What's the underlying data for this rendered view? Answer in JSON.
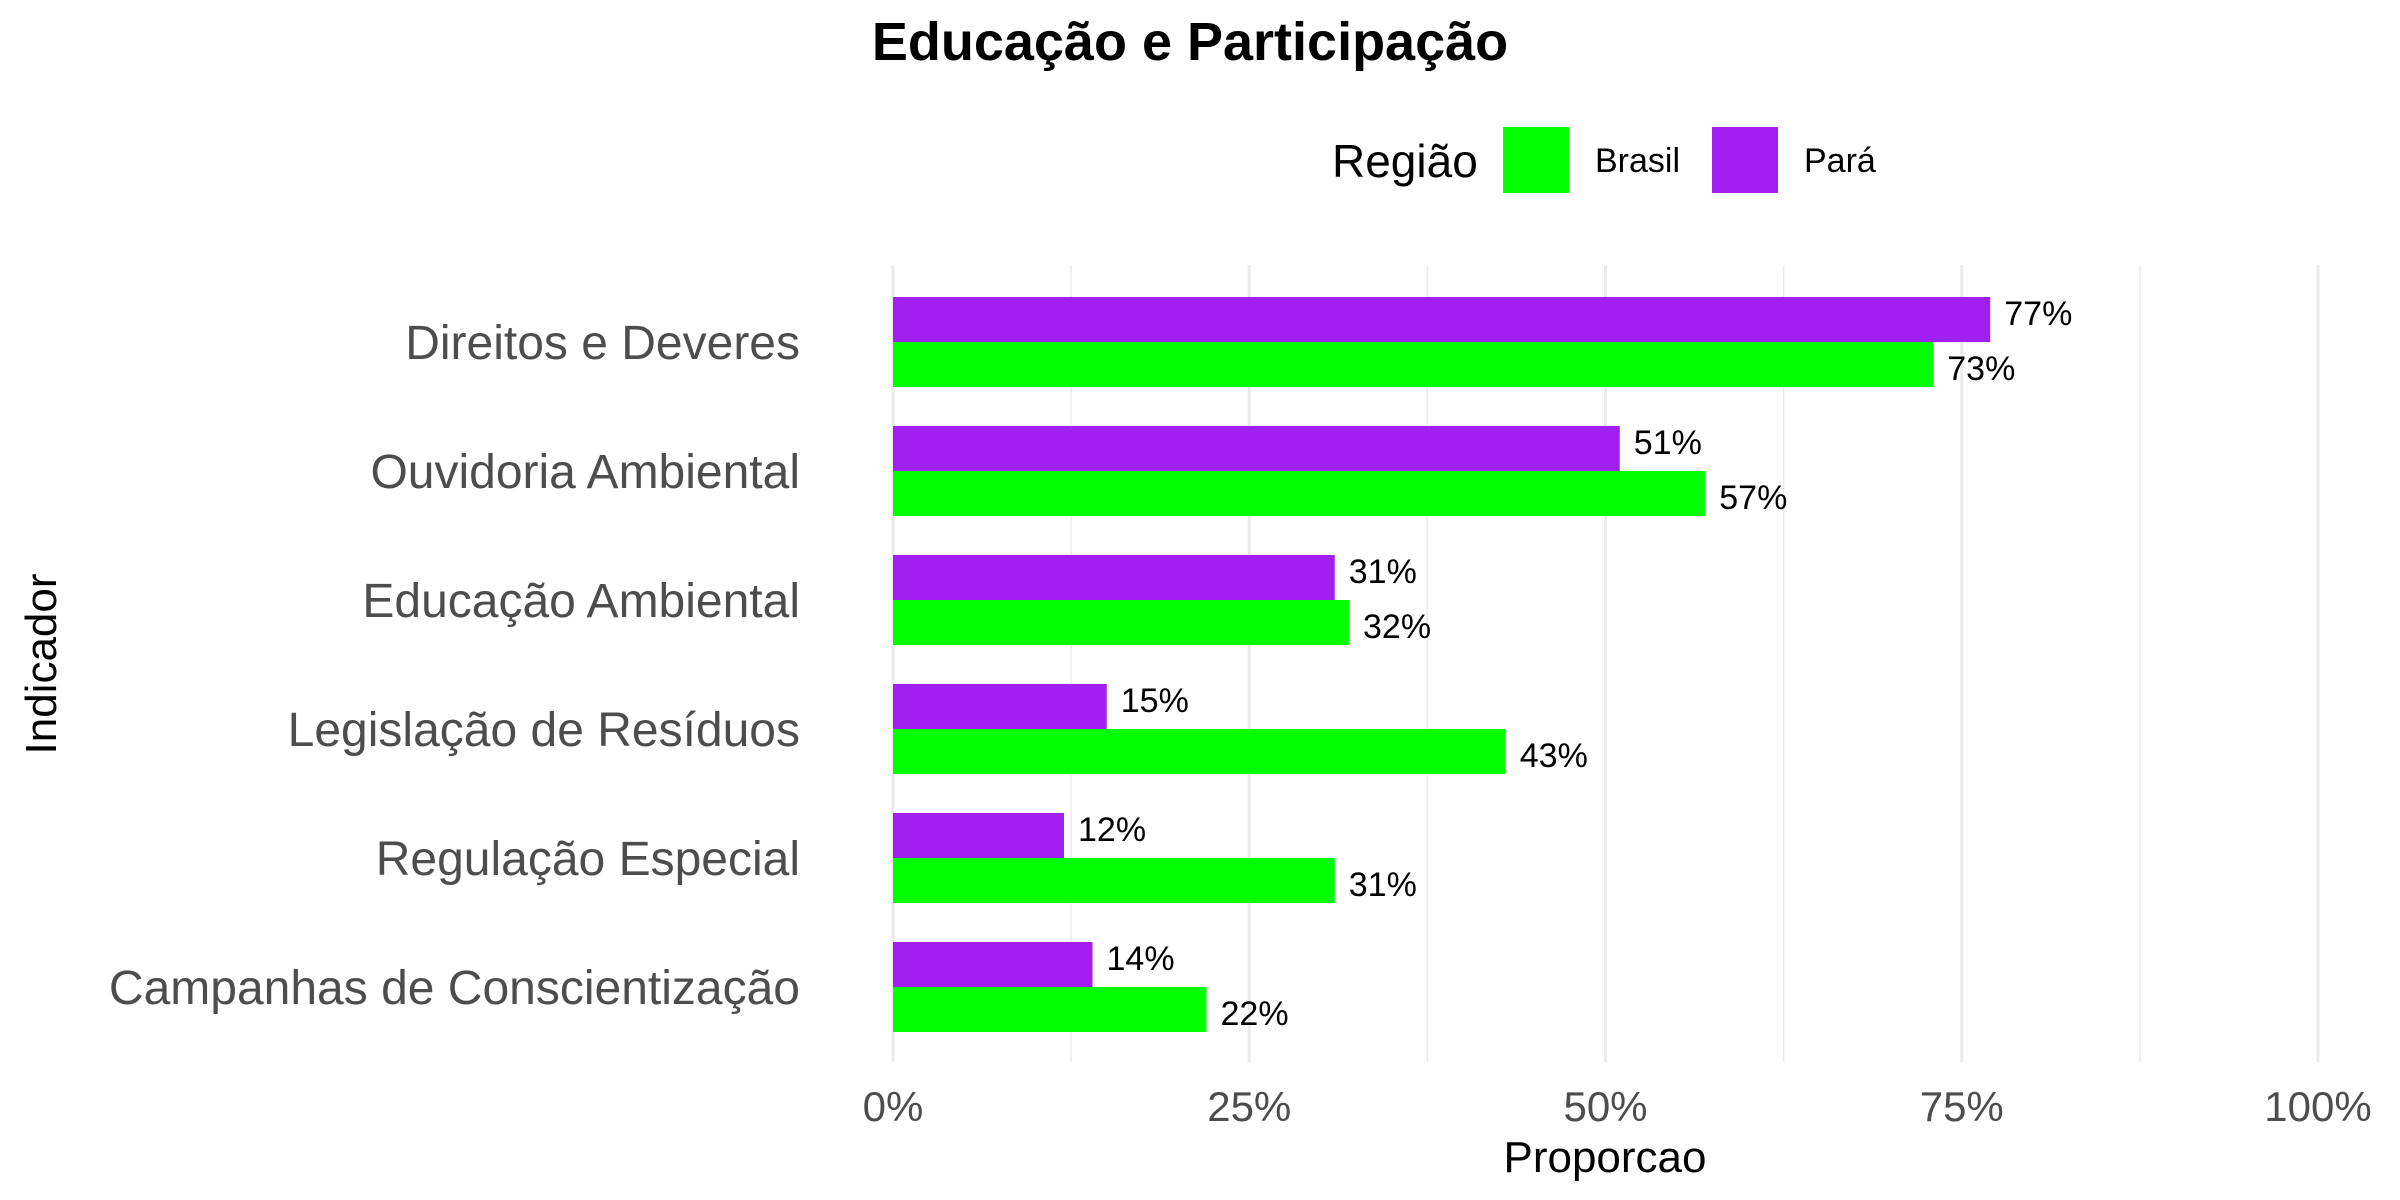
{
  "chart_data": {
    "type": "bar",
    "orientation": "horizontal",
    "title": "Educação e Participação",
    "xlabel": "Proporcao",
    "ylabel": "Indicador",
    "xlim": [
      0,
      1
    ],
    "x_ticks": [
      0,
      0.25,
      0.5,
      0.75,
      1
    ],
    "x_tick_labels": [
      "0%",
      "25%",
      "50%",
      "75%",
      "100%"
    ],
    "grid": true,
    "legend": {
      "title": "Região",
      "placement": "top"
    },
    "categories": [
      "Direitos e Deveres",
      "Ouvidoria Ambiental",
      "Educação Ambiental",
      "Legislação de Resíduos",
      "Regulação Especial",
      "Campanhas de Conscientização"
    ],
    "series": [
      {
        "name": "Brasil",
        "color": "#00ff00",
        "values": [
          0.73,
          0.57,
          0.32,
          0.43,
          0.31,
          0.22
        ],
        "labels": [
          "73%",
          "57%",
          "32%",
          "43%",
          "31%",
          "22%"
        ]
      },
      {
        "name": "Pará",
        "color": "#a020f0",
        "values": [
          0.77,
          0.51,
          0.31,
          0.15,
          0.12,
          0.14
        ],
        "labels": [
          "77%",
          "51%",
          "31%",
          "15%",
          "12%",
          "14%"
        ]
      }
    ]
  }
}
